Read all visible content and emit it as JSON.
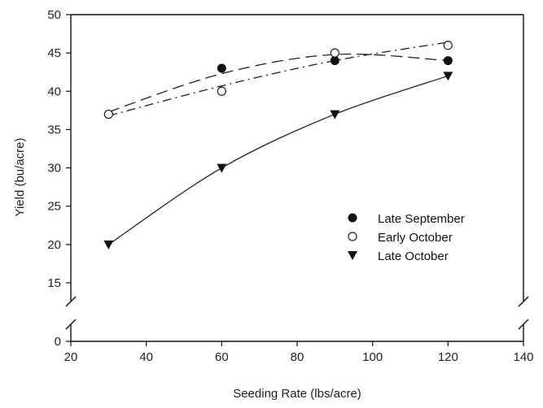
{
  "chart_data": {
    "type": "scatter",
    "xlabel": "Seeding Rate (lbs/acre)",
    "ylabel": "Yield (bu/acre)",
    "xlim": [
      20,
      140
    ],
    "ylim": [
      0,
      50
    ],
    "y_axis_break": [
      0,
      15
    ],
    "xticks": [
      20,
      40,
      60,
      80,
      100,
      120,
      140
    ],
    "yticks": [
      0,
      15,
      20,
      25,
      30,
      35,
      40,
      45,
      50
    ],
    "grid": false,
    "legend_position": "right",
    "series": [
      {
        "name": "Late September",
        "marker": "filled-circle",
        "line_style": "long-dash",
        "x": [
          30,
          60,
          90,
          120
        ],
        "y": [
          37,
          43,
          44,
          44
        ],
        "fit_y": [
          37.3,
          42.3,
          44.8,
          44.0
        ]
      },
      {
        "name": "Early October",
        "marker": "open-circle",
        "line_style": "dash-dot",
        "x": [
          30,
          60,
          90,
          120
        ],
        "y": [
          37,
          40,
          45,
          46
        ],
        "fit_y": [
          36.8,
          40.7,
          44.0,
          46.4
        ]
      },
      {
        "name": "Late October",
        "marker": "filled-triangle-down",
        "line_style": "solid",
        "x": [
          30,
          60,
          90,
          120
        ],
        "y": [
          20,
          30,
          37,
          42
        ],
        "fit_y": [
          20.0,
          30.0,
          37.0,
          42.0
        ]
      }
    ]
  }
}
